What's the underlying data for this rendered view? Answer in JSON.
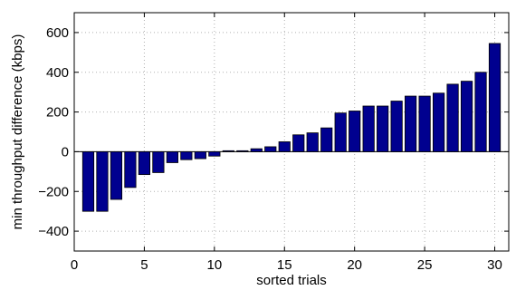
{
  "chart_data": {
    "type": "bar",
    "title": "",
    "xlabel": "sorted trials",
    "ylabel": "min throughput difference (kbps)",
    "x": [
      1,
      2,
      3,
      4,
      5,
      6,
      7,
      8,
      9,
      10,
      11,
      12,
      13,
      14,
      15,
      16,
      17,
      18,
      19,
      20,
      21,
      22,
      23,
      24,
      25,
      26,
      27,
      28,
      29,
      30
    ],
    "values": [
      -300,
      -300,
      -240,
      -180,
      -115,
      -105,
      -55,
      -40,
      -35,
      -22,
      5,
      5,
      15,
      25,
      50,
      85,
      95,
      120,
      195,
      205,
      230,
      230,
      255,
      280,
      280,
      295,
      340,
      355,
      400,
      545
    ],
    "xlim": [
      0,
      31
    ],
    "ylim": [
      -500,
      700
    ],
    "xticks": [
      0,
      5,
      10,
      15,
      20,
      25,
      30
    ],
    "yticks": [
      -400,
      -200,
      0,
      200,
      400,
      600
    ],
    "xtick_labels": [
      "0",
      "5",
      "10",
      "15",
      "20",
      "25",
      "30"
    ],
    "ytick_labels": [
      "−400",
      "−200",
      "0",
      "200",
      "400",
      "600"
    ],
    "grid": true,
    "bar_color": "#00008f"
  }
}
